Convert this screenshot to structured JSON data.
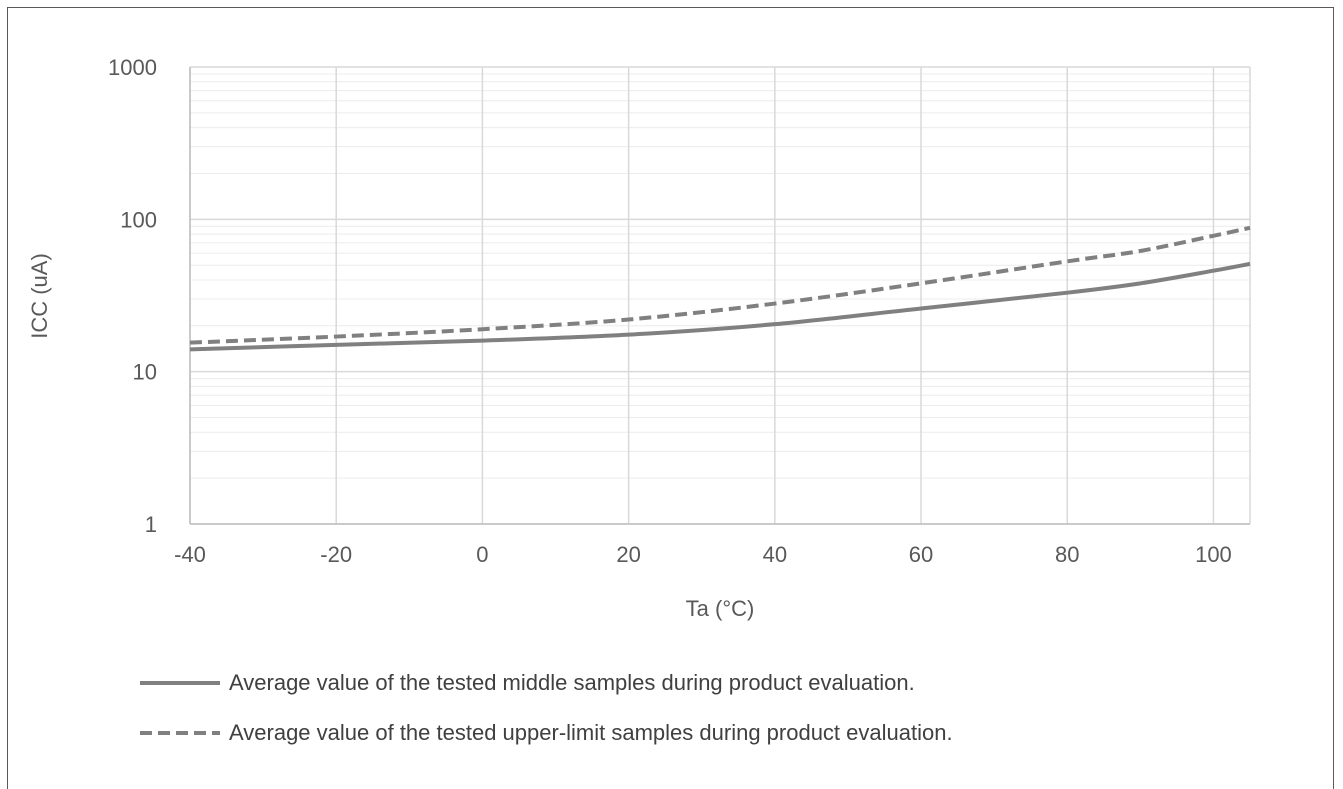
{
  "chart_data": {
    "type": "line",
    "title": "",
    "xlabel": "Ta (°C)",
    "ylabel": "ICC (uA)",
    "xlim": [
      -40,
      105
    ],
    "ylim": [
      1,
      1000
    ],
    "yscale": "log",
    "x_ticks": [
      -40,
      -20,
      0,
      20,
      40,
      60,
      80,
      100
    ],
    "x_tick_labels": [
      "-40",
      "-20",
      "0",
      "20",
      "40",
      "60",
      "80",
      "100"
    ],
    "y_ticks": [
      1,
      10,
      100,
      1000
    ],
    "y_tick_labels": [
      "1",
      "10",
      "100",
      "1000"
    ],
    "grid": true,
    "legend_position": "bottom",
    "x": [
      -40,
      -20,
      0,
      20,
      40,
      60,
      80,
      90,
      100,
      105
    ],
    "series": [
      {
        "name": "Average value of the tested middle samples during product evaluation.",
        "style": "solid",
        "color": "#808080",
        "values": [
          14,
          15,
          16,
          17.5,
          20.5,
          26,
          33,
          38,
          46,
          51
        ]
      },
      {
        "name": "Average value of the tested upper-limit samples during product evaluation.",
        "style": "dashed",
        "color": "#808080",
        "values": [
          15.5,
          17,
          19,
          22,
          28,
          38,
          53,
          62,
          78,
          88
        ]
      }
    ]
  }
}
